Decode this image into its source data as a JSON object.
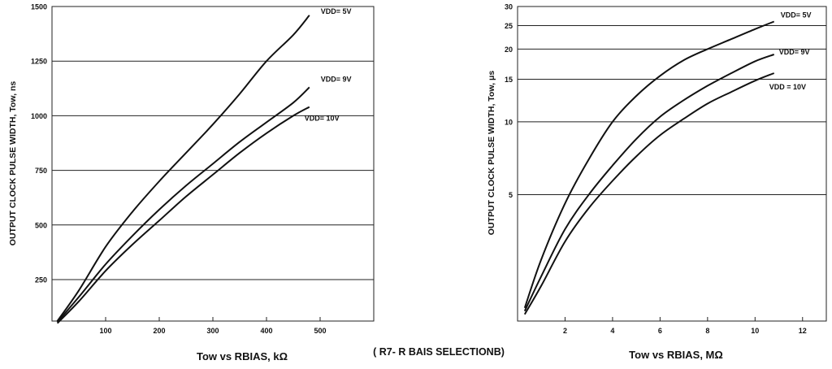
{
  "caption": "( R7- R BAIS SELECTIONB)",
  "chart_data": [
    {
      "type": "line",
      "title": "",
      "xlabel": "Tow vs RBIAS, kΩ",
      "ylabel": "OUTPUT CLOCK PULSE WIDTH, Tow, ns",
      "xlim": [
        0,
        600
      ],
      "ylim": [
        60,
        1500
      ],
      "x_ticks": [
        100,
        200,
        300,
        400,
        500
      ],
      "y_ticks": [
        250,
        500,
        750,
        1000,
        1250,
        1500
      ],
      "grid_y": true,
      "series": [
        {
          "name": "VDD= 5V",
          "x": [
            10,
            50,
            100,
            150,
            200,
            250,
            300,
            350,
            400,
            450,
            480
          ],
          "y": [
            60,
            200,
            400,
            560,
            700,
            830,
            960,
            1100,
            1250,
            1370,
            1460
          ]
        },
        {
          "name": "VDD= 9V",
          "x": [
            10,
            50,
            100,
            150,
            200,
            250,
            300,
            350,
            400,
            450,
            480
          ],
          "y": [
            55,
            170,
            320,
            450,
            570,
            680,
            780,
            880,
            970,
            1060,
            1130
          ]
        },
        {
          "name": "VDD= 10V",
          "x": [
            10,
            50,
            100,
            150,
            200,
            250,
            300,
            350,
            400,
            450,
            480
          ],
          "y": [
            50,
            150,
            290,
            410,
            520,
            630,
            730,
            830,
            920,
            1000,
            1040
          ]
        }
      ]
    },
    {
      "type": "line",
      "title": "",
      "xlabel": "Tow vs RBIAS, MΩ",
      "ylabel": "OUTPUT CLOCK PULSE WIDTH, Tow, μs",
      "xlim": [
        0,
        13
      ],
      "ylim": [
        1.5,
        30
      ],
      "y_scale": "log",
      "x_ticks": [
        2,
        4,
        6,
        8,
        10,
        12
      ],
      "y_ticks": [
        5,
        10,
        15,
        20,
        25,
        30
      ],
      "grid_y": true,
      "series": [
        {
          "name": "VDD= 5V",
          "x": [
            0.3,
            1,
            2,
            3,
            4,
            5,
            6,
            7,
            8,
            9,
            10,
            10.8
          ],
          "y": [
            1.7,
            2.7,
            4.6,
            7.0,
            10.0,
            12.8,
            15.5,
            18.0,
            20.0,
            22.0,
            24.2,
            26.0
          ]
        },
        {
          "name": "VDD= 9V",
          "x": [
            0.3,
            1,
            2,
            3,
            4,
            5,
            6,
            7,
            8,
            9,
            10,
            10.8
          ],
          "y": [
            1.65,
            2.3,
            3.6,
            5.0,
            6.6,
            8.5,
            10.5,
            12.3,
            14.1,
            15.9,
            17.8,
            19.0
          ]
        },
        {
          "name": "VDD = 10V",
          "x": [
            0.3,
            1,
            2,
            3,
            4,
            5,
            6,
            7,
            8,
            9,
            10,
            10.8
          ],
          "y": [
            1.6,
            2.1,
            3.2,
            4.4,
            5.7,
            7.2,
            8.8,
            10.3,
            11.9,
            13.3,
            14.8,
            15.9
          ]
        }
      ]
    }
  ]
}
